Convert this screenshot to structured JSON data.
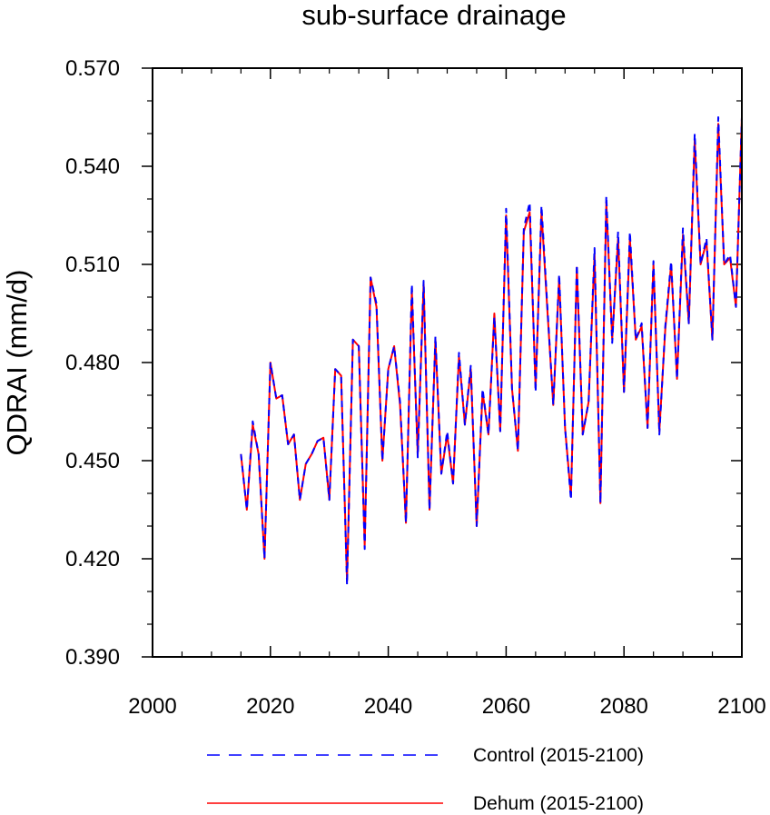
{
  "chart_data": {
    "type": "line",
    "title": "sub-surface drainage",
    "xlabel": "",
    "ylabel": "QDRAI  (mm/d)",
    "xlim": [
      2000,
      2100
    ],
    "ylim": [
      0.39,
      0.57
    ],
    "xticks": [
      2000,
      2020,
      2040,
      2060,
      2080,
      2100
    ],
    "xtick_labels": [
      "2000",
      "2020",
      "2040",
      "2060",
      "2080",
      "2100"
    ],
    "yticks": [
      0.39,
      0.42,
      0.45,
      0.48,
      0.51,
      0.54,
      0.57
    ],
    "ytick_labels": [
      "0.390",
      "0.420",
      "0.450",
      "0.480",
      "0.510",
      "0.540",
      "0.570"
    ],
    "grid": false,
    "legend_position": "bottom",
    "x": [
      2015,
      2016,
      2017,
      2018,
      2019,
      2020,
      2021,
      2022,
      2023,
      2024,
      2025,
      2026,
      2027,
      2028,
      2029,
      2030,
      2031,
      2032,
      2033,
      2034,
      2035,
      2036,
      2037,
      2038,
      2039,
      2040,
      2041,
      2042,
      2043,
      2044,
      2045,
      2046,
      2047,
      2048,
      2049,
      2050,
      2051,
      2052,
      2053,
      2054,
      2055,
      2056,
      2057,
      2058,
      2059,
      2060,
      2061,
      2062,
      2063,
      2064,
      2065,
      2066,
      2067,
      2068,
      2069,
      2070,
      2071,
      2072,
      2073,
      2074,
      2075,
      2076,
      2077,
      2078,
      2079,
      2080,
      2081,
      2082,
      2083,
      2084,
      2085,
      2086,
      2087,
      2088,
      2089,
      2090,
      2091,
      2092,
      2093,
      2094,
      2095,
      2096,
      2097,
      2098,
      2099,
      2100
    ],
    "series": [
      {
        "name": "Control (2015-2100)",
        "color": "#0000ff",
        "style": "dashed",
        "values": [
          0.452,
          0.435,
          0.462,
          0.452,
          0.42,
          0.48,
          0.469,
          0.47,
          0.455,
          0.458,
          0.438,
          0.449,
          0.452,
          0.456,
          0.457,
          0.438,
          0.478,
          0.476,
          0.412,
          0.487,
          0.485,
          0.423,
          0.506,
          0.498,
          0.45,
          0.478,
          0.485,
          0.468,
          0.431,
          0.504,
          0.451,
          0.505,
          0.435,
          0.488,
          0.446,
          0.459,
          0.443,
          0.483,
          0.461,
          0.479,
          0.43,
          0.472,
          0.458,
          0.494,
          0.459,
          0.527,
          0.472,
          0.453,
          0.521,
          0.529,
          0.471,
          0.528,
          0.497,
          0.467,
          0.507,
          0.46,
          0.438,
          0.51,
          0.458,
          0.468,
          0.515,
          0.437,
          0.531,
          0.486,
          0.52,
          0.471,
          0.52,
          0.487,
          0.492,
          0.46,
          0.511,
          0.458,
          0.491,
          0.511,
          0.475,
          0.521,
          0.492,
          0.55,
          0.51,
          0.518,
          0.487,
          0.555,
          0.51,
          0.513,
          0.497,
          0.555
        ]
      },
      {
        "name": "Dehum (2015-2100)",
        "color": "#ff0000",
        "style": "solid",
        "values": [
          0.452,
          0.435,
          0.461,
          0.452,
          0.42,
          0.48,
          0.469,
          0.47,
          0.455,
          0.458,
          0.438,
          0.449,
          0.452,
          0.456,
          0.457,
          0.438,
          0.478,
          0.476,
          0.413,
          0.487,
          0.485,
          0.424,
          0.506,
          0.497,
          0.45,
          0.478,
          0.485,
          0.467,
          0.431,
          0.502,
          0.452,
          0.504,
          0.435,
          0.487,
          0.446,
          0.458,
          0.443,
          0.482,
          0.461,
          0.478,
          0.43,
          0.471,
          0.458,
          0.495,
          0.459,
          0.525,
          0.472,
          0.453,
          0.52,
          0.526,
          0.472,
          0.526,
          0.496,
          0.467,
          0.506,
          0.46,
          0.439,
          0.509,
          0.458,
          0.468,
          0.513,
          0.437,
          0.529,
          0.487,
          0.518,
          0.471,
          0.518,
          0.487,
          0.491,
          0.46,
          0.51,
          0.459,
          0.49,
          0.51,
          0.475,
          0.519,
          0.492,
          0.548,
          0.51,
          0.517,
          0.487,
          0.553,
          0.51,
          0.512,
          0.497,
          0.555
        ]
      }
    ]
  }
}
